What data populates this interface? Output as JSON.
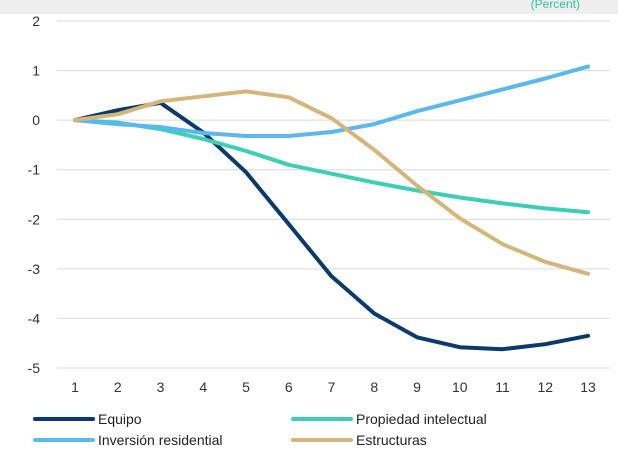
{
  "header": {
    "clipped_text": "(Percent)"
  },
  "chart_data": {
    "type": "line",
    "x": [
      1,
      2,
      3,
      4,
      5,
      6,
      7,
      8,
      9,
      10,
      11,
      12,
      13
    ],
    "ylim": [
      -5,
      2
    ],
    "yticks": [
      2,
      1,
      0,
      -1,
      -2,
      -3,
      -4,
      -5
    ],
    "grid": true,
    "legend_position": "bottom",
    "series": [
      {
        "name": "Equipo",
        "color": "#0b3a6e",
        "values": [
          0,
          0.2,
          0.35,
          -0.25,
          -1.05,
          -2.1,
          -3.15,
          -3.9,
          -4.38,
          -4.58,
          -4.62,
          -4.52,
          -4.35
        ]
      },
      {
        "name": "Propiedad intelectual",
        "color": "#3dcfb6",
        "values": [
          0,
          -0.05,
          -0.18,
          -0.38,
          -0.62,
          -0.9,
          -1.08,
          -1.26,
          -1.42,
          -1.56,
          -1.68,
          -1.78,
          -1.86
        ]
      },
      {
        "name": "Inversión residential",
        "color": "#5ab7f0",
        "values": [
          0,
          -0.08,
          -0.14,
          -0.26,
          -0.32,
          -0.32,
          -0.24,
          -0.08,
          0.18,
          0.4,
          0.62,
          0.84,
          1.08
        ]
      },
      {
        "name": "Estructuras",
        "color": "#d6b57a",
        "values": [
          0,
          0.12,
          0.38,
          0.48,
          0.58,
          0.46,
          0.04,
          -0.6,
          -1.32,
          -1.98,
          -2.5,
          -2.86,
          -3.1
        ]
      }
    ]
  }
}
